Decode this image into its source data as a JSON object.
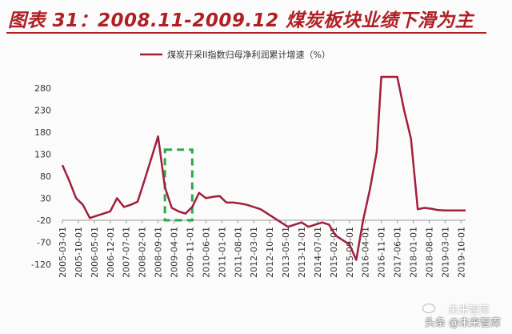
{
  "header": {
    "title": "图表 31：2008.11-2009.12 煤炭板块业绩下滑为主"
  },
  "colors": {
    "title": "#b01f24",
    "line": "#a01f3b",
    "highlight": "#2aa84a",
    "axis": "#999999"
  },
  "watermark": {
    "text": "头条 @未来智库",
    "ghost": "未来智库",
    "icon": "wechat-icon"
  },
  "chart_data": {
    "type": "line",
    "title": "",
    "xlabel": "",
    "ylabel": "",
    "legend": {
      "placement": "top-center"
    },
    "ylim": [
      -120,
      305
    ],
    "yticks": [
      -120,
      -70,
      -20,
      30,
      80,
      130,
      180,
      230,
      280
    ],
    "xticks": [
      "2005-03-01",
      "2005-10-01",
      "2006-05-01",
      "2006-12-01",
      "2007-07-01",
      "2008-02-01",
      "2008-09-01",
      "2009-04-01",
      "2009-11-01",
      "2010-06-01",
      "2011-01-01",
      "2011-08-01",
      "2012-03-01",
      "2012-10-01",
      "2013-05-01",
      "2013-12-01",
      "2014-07-01",
      "2015-02-01",
      "2015-09-01",
      "2016-04-01",
      "2016-11-01",
      "2017-06-01",
      "2018-01-01",
      "2018-08-01",
      "2019-03-01",
      "2019-10-01"
    ],
    "series": [
      {
        "name": "煤炭开采II指数归母净利润累计增速（%）",
        "points": [
          [
            "2005-03",
            105
          ],
          [
            "2005-06",
            70
          ],
          [
            "2005-09",
            30
          ],
          [
            "2005-12",
            15
          ],
          [
            "2006-03",
            -15
          ],
          [
            "2006-06",
            -10
          ],
          [
            "2006-09",
            -5
          ],
          [
            "2006-12",
            0
          ],
          [
            "2007-03",
            30
          ],
          [
            "2007-06",
            10
          ],
          [
            "2007-09",
            15
          ],
          [
            "2007-12",
            22
          ],
          [
            "2008-03",
            70
          ],
          [
            "2008-06",
            120
          ],
          [
            "2008-09",
            170
          ],
          [
            "2008-12",
            55
          ],
          [
            "2009-03",
            8
          ],
          [
            "2009-06",
            0
          ],
          [
            "2009-09",
            -5
          ],
          [
            "2009-12",
            10
          ],
          [
            "2010-03",
            42
          ],
          [
            "2010-06",
            30
          ],
          [
            "2010-09",
            33
          ],
          [
            "2010-12",
            35
          ],
          [
            "2011-03",
            20
          ],
          [
            "2011-06",
            20
          ],
          [
            "2011-09",
            18
          ],
          [
            "2011-12",
            15
          ],
          [
            "2012-03",
            10
          ],
          [
            "2012-06",
            5
          ],
          [
            "2012-09",
            -5
          ],
          [
            "2012-12",
            -15
          ],
          [
            "2013-03",
            -25
          ],
          [
            "2013-06",
            -35
          ],
          [
            "2013-09",
            -30
          ],
          [
            "2013-12",
            -25
          ],
          [
            "2014-03",
            -35
          ],
          [
            "2014-06",
            -30
          ],
          [
            "2014-09",
            -25
          ],
          [
            "2014-12",
            -30
          ],
          [
            "2015-03",
            -55
          ],
          [
            "2015-06",
            -65
          ],
          [
            "2015-09",
            -75
          ],
          [
            "2015-12",
            -110
          ],
          [
            "2016-03",
            -20
          ],
          [
            "2016-06",
            50
          ],
          [
            "2016-09",
            135
          ],
          [
            "2016-11",
            305
          ],
          [
            "2017-06",
            305
          ],
          [
            "2017-09",
            230
          ],
          [
            "2017-12",
            165
          ],
          [
            "2018-03",
            5
          ],
          [
            "2018-06",
            8
          ],
          [
            "2018-09",
            6
          ],
          [
            "2018-12",
            3
          ],
          [
            "2019-03",
            2
          ],
          [
            "2019-06",
            2
          ],
          [
            "2019-09",
            2
          ],
          [
            "2019-12",
            2
          ]
        ]
      }
    ],
    "highlight_range": {
      "x": [
        "2008-12",
        "2009-12"
      ],
      "y": [
        -20,
        140
      ],
      "style": "dashed"
    }
  }
}
